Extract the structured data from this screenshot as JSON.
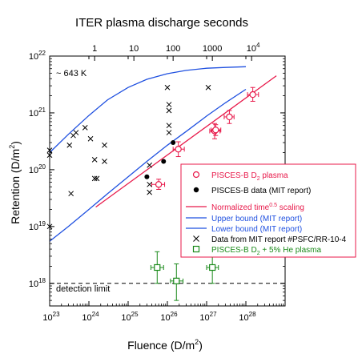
{
  "chart_data": {
    "type": "scatter",
    "title": "ITER plasma discharge seconds",
    "xlabel": "Fluence (D/m",
    "xlabel_sup": "2",
    "xlabel_tail": ")",
    "ylabel": "Retention (D/m",
    "ylabel_sup": "2",
    "ylabel_tail": ")",
    "x_scale": "log",
    "y_scale": "log",
    "xlim": [
      1e+23,
      1e+29
    ],
    "ylim": [
      4e+17,
      1e+22
    ],
    "x_ticks": [
      {
        "value": 1e+23,
        "base": "10",
        "exp": "23"
      },
      {
        "value": 1e+24,
        "base": "10",
        "exp": "24"
      },
      {
        "value": 1e+25,
        "base": "10",
        "exp": "25"
      },
      {
        "value": 1e+26,
        "base": "10",
        "exp": "26"
      },
      {
        "value": 1e+27,
        "base": "10",
        "exp": "27"
      },
      {
        "value": 1e+28,
        "base": "10",
        "exp": "28"
      }
    ],
    "y_ticks": [
      {
        "value": 1e+18,
        "base": "10",
        "exp": "18"
      },
      {
        "value": 1e+19,
        "base": "10",
        "exp": "19"
      },
      {
        "value": 1e+20,
        "base": "10",
        "exp": "20"
      },
      {
        "value": 1e+21,
        "base": "10",
        "exp": "21"
      },
      {
        "value": 1e+22,
        "base": "10",
        "exp": "22"
      }
    ],
    "top_axis": {
      "label": "ITER plasma discharge seconds",
      "ticks": [
        {
          "fluence": 1.4e+24,
          "label": "1"
        },
        {
          "fluence": 1.4e+25,
          "label": "10"
        },
        {
          "fluence": 1.4e+26,
          "label": "100"
        },
        {
          "fluence": 1.4e+27,
          "label": "1000"
        },
        {
          "fluence": 1.4e+28,
          "label": "10",
          "exp": "4"
        }
      ]
    },
    "annotations": [
      {
        "text": "~ 643 K",
        "x": 1.5e+23,
        "y": 7e+21
      },
      {
        "text": "detection limit",
        "x": 1.5e+23,
        "y": 1.3e+18
      }
    ],
    "detection_limit": 1e+18,
    "legend_position": "right",
    "series": [
      {
        "name": "PISCES-B D",
        "name_sub": "2",
        "name_tail": " plasma",
        "marker": "open-circle",
        "color": "#e8194a",
        "points": [
          {
            "x": 6e+25,
            "y": 5.5e+19,
            "xerr": [
              4e+25,
              8.5e+25
            ],
            "yerr": [
              4.5e+19,
              6.8e+19
            ]
          },
          {
            "x": 1.9e+26,
            "y": 2.3e+20,
            "xerr": [
              1.4e+26,
              2.7e+26
            ],
            "yerr": [
              1.7e+20,
              3.1e+20
            ]
          },
          {
            "x": 1.6e+27,
            "y": 4.8e+20,
            "xerr": [
              1.2e+27,
              2.2e+27
            ],
            "yerr": [
              3.5e+20,
              6.5e+20
            ]
          },
          {
            "x": 1.7e+27,
            "y": 5e+20,
            "xerr": [
              1.3e+27,
              2.3e+27
            ],
            "yerr": [
              4e+20,
              6.2e+20
            ]
          },
          {
            "x": 3.8e+27,
            "y": 8.5e+20,
            "xerr": [
              2.8e+27,
              5e+27
            ],
            "yerr": [
              6.5e+20,
              1.1e+21
            ]
          },
          {
            "x": 1.5e+28,
            "y": 2.1e+21,
            "xerr": [
              1.1e+28,
              2.1e+28
            ],
            "yerr": [
              1.6e+21,
              2.8e+21
            ]
          }
        ]
      },
      {
        "name": "PISCES-B data (MIT report)",
        "marker": "filled-circle",
        "color": "#000000",
        "points": [
          {
            "x": 3e+25,
            "y": 7.5e+19
          },
          {
            "x": 8e+25,
            "y": 1.4e+20
          },
          {
            "x": 1.4e+26,
            "y": 3e+20
          }
        ]
      },
      {
        "name": "Normalized time",
        "name_sup": "0.5",
        "name_tail": " scaling",
        "marker": "line",
        "color": "#e8194a",
        "points": [
          {
            "x": 1.5e+24,
            "y": 2.2e+19
          },
          {
            "x": 6e+28,
            "y": 4.5e+21
          }
        ]
      },
      {
        "name": "Upper bound (MIT report)",
        "marker": "line",
        "color": "#1f50e0",
        "points": [
          {
            "x": 1e+23,
            "y": 2e+20
          },
          {
            "x": 3e+23,
            "y": 4.2e+20
          },
          {
            "x": 1e+24,
            "y": 9e+20
          },
          {
            "x": 3e+24,
            "y": 1.7e+21
          },
          {
            "x": 1e+25,
            "y": 2.8e+21
          },
          {
            "x": 3e+25,
            "y": 3.9e+21
          },
          {
            "x": 1e+26,
            "y": 4.9e+21
          },
          {
            "x": 3e+26,
            "y": 5.6e+21
          },
          {
            "x": 1e+27,
            "y": 6.1e+21
          },
          {
            "x": 3e+27,
            "y": 6.3e+21
          },
          {
            "x": 1e+28,
            "y": 6.5e+21
          }
        ]
      },
      {
        "name": "Lower bound (MIT report)",
        "marker": "line",
        "color": "#1f50e0",
        "points": [
          {
            "x": 1e+23,
            "y": 5.5e+18
          },
          {
            "x": 3e+23,
            "y": 1e+19
          },
          {
            "x": 1e+24,
            "y": 2e+19
          },
          {
            "x": 3e+24,
            "y": 3.8e+19
          },
          {
            "x": 1e+25,
            "y": 7.5e+19
          },
          {
            "x": 3e+25,
            "y": 1.4e+20
          },
          {
            "x": 1e+26,
            "y": 2.7e+20
          },
          {
            "x": 3e+26,
            "y": 4.7e+20
          },
          {
            "x": 1e+27,
            "y": 8.8e+20
          },
          {
            "x": 3e+27,
            "y": 1.5e+21
          },
          {
            "x": 1e+28,
            "y": 2.6e+21
          }
        ]
      },
      {
        "name": "Data from MIT report #PSFC/RR-10-4",
        "marker": "x",
        "color": "#000000",
        "points": [
          {
            "x": 1e+23,
            "y": 2.2e+20
          },
          {
            "x": 1e+23,
            "y": 1.8e+20
          },
          {
            "x": 1e+23,
            "y": 1e+19
          },
          {
            "x": 3.2e+23,
            "y": 2.7e+20
          },
          {
            "x": 3.5e+23,
            "y": 3.8e+19
          },
          {
            "x": 4e+23,
            "y": 4e+20
          },
          {
            "x": 4.7e+23,
            "y": 4.5e+20
          },
          {
            "x": 8e+23,
            "y": 5.5e+20
          },
          {
            "x": 1.1e+24,
            "y": 3.5e+20
          },
          {
            "x": 1.4e+24,
            "y": 1.5e+20
          },
          {
            "x": 1.4e+24,
            "y": 7e+19
          },
          {
            "x": 1.6e+24,
            "y": 7e+19
          },
          {
            "x": 2.5e+24,
            "y": 2.7e+20
          },
          {
            "x": 2.5e+24,
            "y": 1.4e+20
          },
          {
            "x": 3.5e+25,
            "y": 1.2e+20
          },
          {
            "x": 3.5e+25,
            "y": 5.5e+19
          },
          {
            "x": 3.5e+25,
            "y": 4e+19
          },
          {
            "x": 1e+26,
            "y": 2.8e+21
          },
          {
            "x": 1.1e+26,
            "y": 1.4e+21
          },
          {
            "x": 1.1e+26,
            "y": 1.1e+21
          },
          {
            "x": 1.1e+26,
            "y": 6e+20
          },
          {
            "x": 1.1e+26,
            "y": 4.5e+20
          },
          {
            "x": 1.1e+27,
            "y": 2.8e+21
          }
        ]
      },
      {
        "name": "PISCES-B D",
        "name_sub": "2",
        "name_tail": " + 5% He plasma",
        "marker": "open-square",
        "color": "#1a8a1a",
        "points": [
          {
            "x": 5.5e+25,
            "y": 1.9e+18,
            "xerr": [
              3.8e+25,
              8e+25
            ],
            "yerr": [
              1e+18,
              3.6e+18
            ]
          },
          {
            "x": 1.7e+26,
            "y": 1.1e+18,
            "xerr": [
              1.2e+26,
              2.5e+26
            ],
            "yerr": [
              5e+17,
              2.2e+18
            ]
          },
          {
            "x": 1.4e+27,
            "y": 1.9e+18,
            "xerr": [
              1e+27,
              2e+27
            ],
            "yerr": [
              1e+18,
              3.6e+18
            ]
          }
        ]
      }
    ]
  }
}
